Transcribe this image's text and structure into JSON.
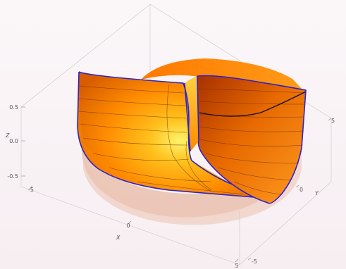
{
  "axes": {
    "x": {
      "label": "X",
      "ticks": [
        "-5",
        "0",
        "5"
      ]
    },
    "y": {
      "label": "Y",
      "ticks": [
        "5",
        "0",
        "-5"
      ]
    },
    "z": {
      "label": "Z",
      "ticks": [
        "0.5",
        "0.0",
        "-0.5"
      ]
    }
  },
  "colors": {
    "surface_light": "#ffe33a",
    "surface_mid": "#ff8c00",
    "surface_dark": "#b83a00",
    "shadow_fill": "#e8b9a6",
    "edge": "#2b22c9",
    "mesh": "#5a2a10"
  }
}
